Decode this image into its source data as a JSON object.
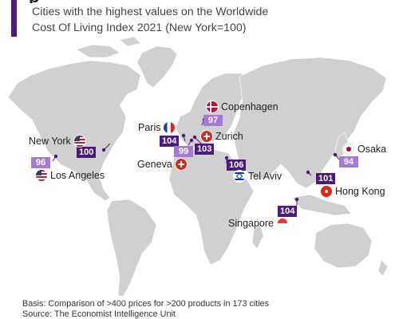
{
  "header": {
    "title_fragment": "p",
    "subtitle_line1": "Cities with the highest values on the Worldwide",
    "subtitle_line2": "Cost Of Living Index 2021 (New York=100)"
  },
  "colors": {
    "accent": "#4b1a7a",
    "badge_dark": "#4b1a7a",
    "badge_light": "#a47ad6",
    "land": "#d0d0d0",
    "connector": "#4b1a7a"
  },
  "cities": [
    {
      "id": "copenhagen",
      "name": "Copenhagen",
      "index": 97,
      "flag": "flag-denmark"
    },
    {
      "id": "paris",
      "name": "Paris",
      "index": 104,
      "flag": "flag-france"
    },
    {
      "id": "zurich",
      "name": "Zurich",
      "index": 103,
      "flag": "flag-switzerland"
    },
    {
      "id": "geneva",
      "name": "Geneva",
      "index": 99,
      "flag": "flag-switzerland"
    },
    {
      "id": "new_york",
      "name": "New York",
      "index": 100,
      "flag": "flag-usa"
    },
    {
      "id": "los_angeles",
      "name": "Los Angeles",
      "index": 96,
      "flag": "flag-usa"
    },
    {
      "id": "tel_aviv",
      "name": "Tel Aviv",
      "index": 106,
      "flag": "flag-israel"
    },
    {
      "id": "osaka",
      "name": "Osaka",
      "index": 94,
      "flag": "flag-japan"
    },
    {
      "id": "hong_kong",
      "name": "Hong Kong",
      "index": 101,
      "flag": "flag-hong-kong"
    },
    {
      "id": "singapore",
      "name": "Singapore",
      "index": 104,
      "flag": "flag-singapore"
    }
  ],
  "footnote": {
    "basis": "Basis: Comparison of >400 prices for >200 products in 173 cities",
    "source": "Source: The Economist Intelligence Unit"
  }
}
